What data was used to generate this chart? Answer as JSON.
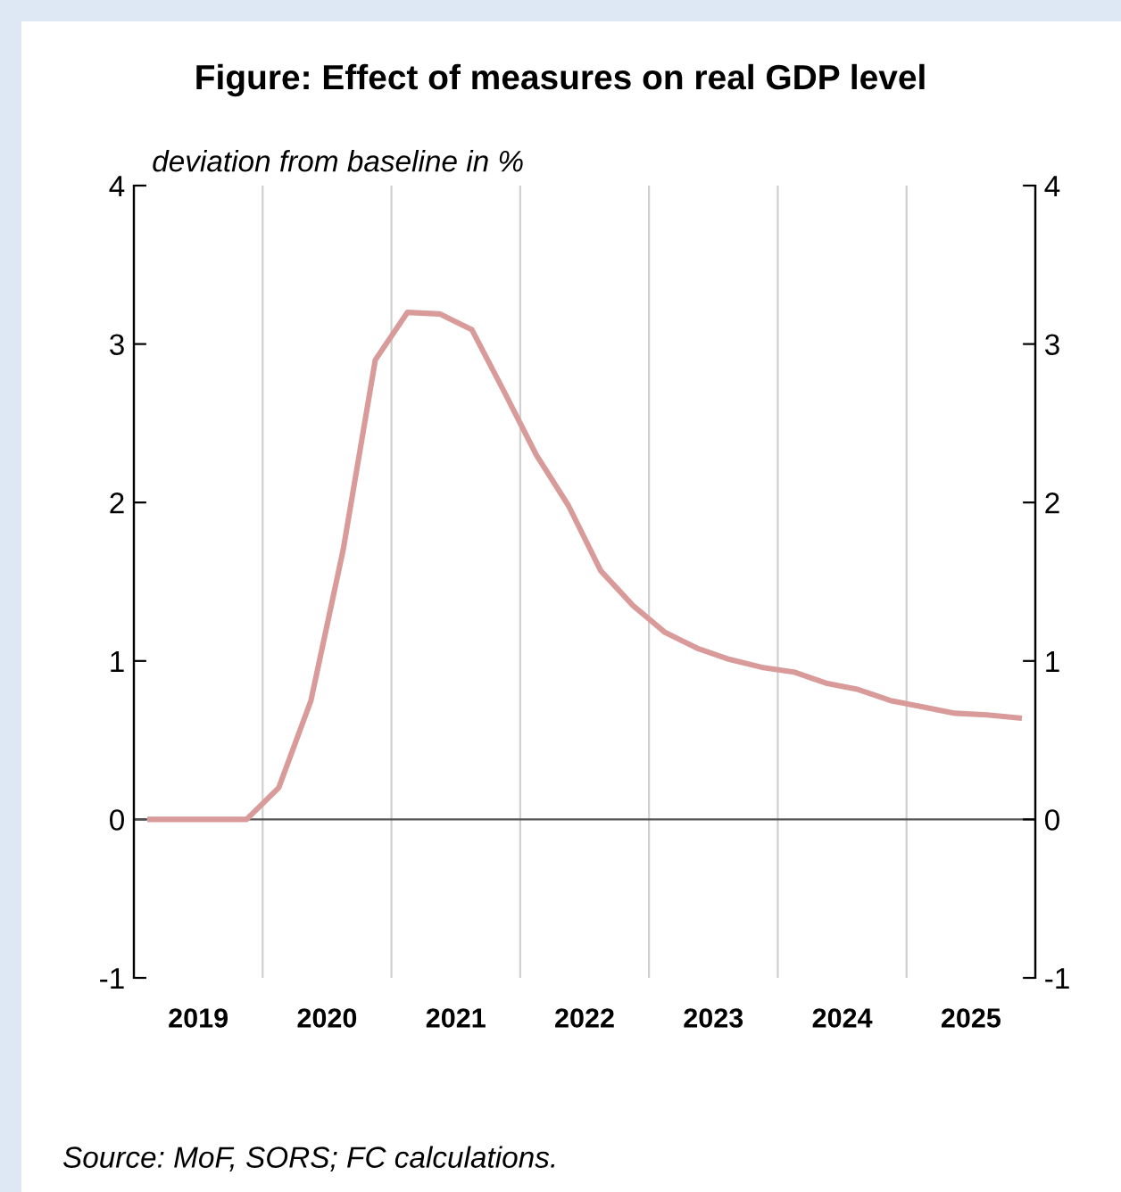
{
  "chart_data": {
    "type": "line",
    "title": "Figure: Effect of measures on real GDP level",
    "ylabel": "deviation from baseline in %",
    "x": [
      2019.125,
      2019.375,
      2019.625,
      2019.875,
      2020.125,
      2020.375,
      2020.625,
      2020.875,
      2021.125,
      2021.375,
      2021.625,
      2021.875,
      2022.125,
      2022.375,
      2022.625,
      2022.875,
      2023.125,
      2023.375,
      2023.625,
      2023.875,
      2024.125,
      2024.375,
      2024.625,
      2024.875,
      2025.125,
      2025.375,
      2025.625,
      2025.875
    ],
    "series": [
      {
        "color": "#d99a9a",
        "values": [
          0,
          0,
          0,
          0,
          0.2,
          0.75,
          1.7,
          2.9,
          3.2,
          3.19,
          3.09,
          2.7,
          2.3,
          1.98,
          1.57,
          1.35,
          1.18,
          1.08,
          1.01,
          0.96,
          0.93,
          0.86,
          0.82,
          0.75,
          0.71,
          0.67,
          0.66,
          0.64
        ]
      }
    ],
    "xlim": [
      2019,
      2026
    ],
    "xticks": [
      {
        "value": 2019.5,
        "label": "2019"
      },
      {
        "value": 2020,
        "label": null
      },
      {
        "value": 2020.5,
        "label": "2020"
      },
      {
        "value": 2021,
        "label": null
      },
      {
        "value": 2021.5,
        "label": "2021"
      },
      {
        "value": 2022,
        "label": null
      },
      {
        "value": 2022.5,
        "label": "2022"
      },
      {
        "value": 2023,
        "label": null
      },
      {
        "value": 2023.5,
        "label": "2023"
      },
      {
        "value": 2024,
        "label": null
      },
      {
        "value": 2024.5,
        "label": "2024"
      },
      {
        "value": 2025,
        "label": null
      },
      {
        "value": 2025.5,
        "label": "2025"
      }
    ],
    "ylim": [
      -1,
      4
    ],
    "yticks": [
      -1,
      0,
      1,
      2,
      3,
      4
    ],
    "y2lim": [
      -1,
      4
    ],
    "y2ticks": [
      -1,
      0,
      1,
      2,
      3,
      4
    ],
    "grid": "x",
    "marker": "none",
    "line_style": "solid",
    "annotations": [
      "Source: MoF, SORS; FC calculations."
    ]
  }
}
